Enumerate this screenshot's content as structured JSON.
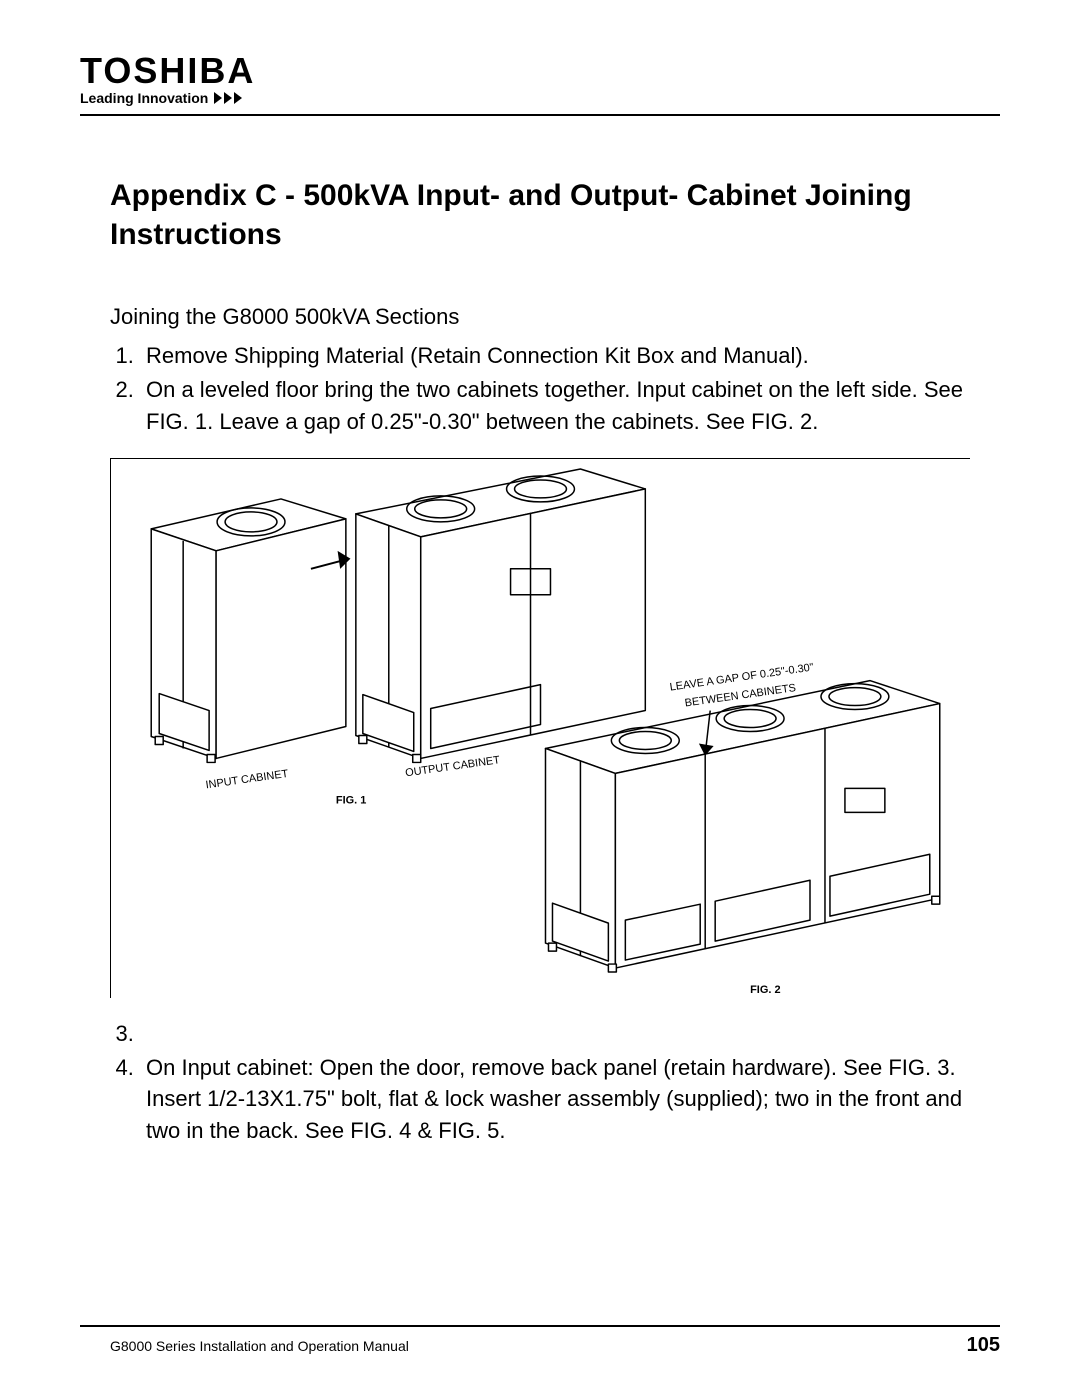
{
  "brand": {
    "name": "TOSHIBA",
    "tagline": "Leading Innovation"
  },
  "title": "Appendix C - 500kVA Input- and Output- Cabinet Joining Instructions",
  "subheading": "Joining the G8000 500kVA Sections",
  "steps_a": [
    "Remove Shipping Material (Retain Connection Kit Box and Manual).",
    "On a leveled floor bring the two cabinets together.  Input cabinet on the left side. See FIG. 1. Leave a gap of 0.25\"-0.30\" between the cabinets. See FIG. 2."
  ],
  "steps_b_start": 3,
  "steps_b": [
    "",
    "On Input cabinet: Open the door, remove back panel (retain hardware). See FIG. 3. Insert 1/2-13X1.75\" bolt, flat & lock washer assembly (supplied); two in the front and two in the back. See FIG. 4 & FIG. 5."
  ],
  "figure": {
    "labels": {
      "fig1": "FIG. 1",
      "fig2": "FIG. 2",
      "input_cab": "INPUT CABINET",
      "output_cab": "OUTPUT CABINET",
      "gap_l1": "LEAVE A GAP OF 0.25\"-0.30\"",
      "gap_l2": "BETWEEN CABINETS"
    }
  },
  "footer": {
    "manual": "G8000 Series Installation and Operation Manual",
    "page": "105"
  },
  "colors": {
    "ink": "#000000",
    "paper": "#ffffff"
  }
}
